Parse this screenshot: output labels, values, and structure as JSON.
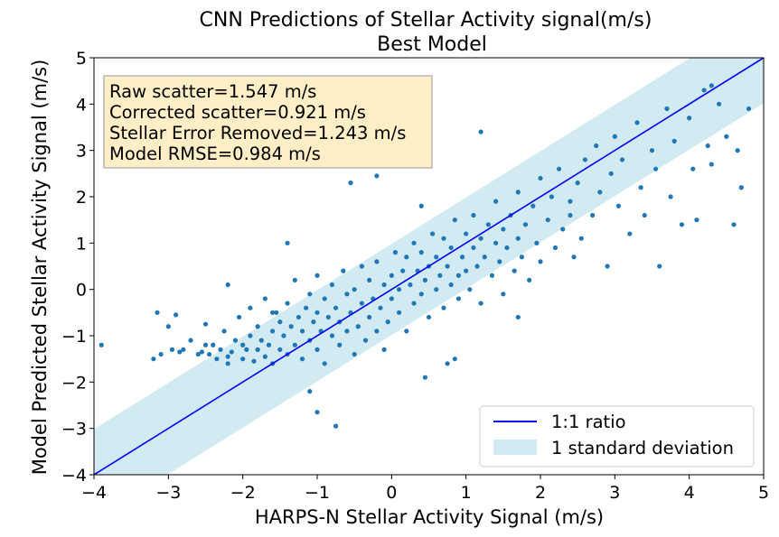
{
  "chart_data": {
    "type": "scatter",
    "title": "CNN Predictions of Stellar Activity signal(m/s)",
    "subtitle": "Best Model",
    "xlabel": "HARPS-N Stellar Activity Signal (m/s)",
    "ylabel": "Model Predicted Stellar Activity Signal (m/s)",
    "xlim": [
      -4,
      5
    ],
    "ylim": [
      -4,
      5
    ],
    "xticks": [
      -4,
      -3,
      -2,
      -1,
      0,
      1,
      2,
      3,
      4,
      5
    ],
    "yticks": [
      -4,
      -3,
      -2,
      -1,
      0,
      1,
      2,
      3,
      4,
      5
    ],
    "grid": false,
    "legend_position": "bottom-right",
    "annotation_lines": [
      "Raw scatter=1.547 m/s",
      "Corrected scatter=0.921 m/s",
      "Stellar Error Removed=1.243 m/s",
      "Model RMSE=0.984 m/s"
    ],
    "band": {
      "label": "1 standard deviation",
      "half_width": 0.984,
      "color": "#add8e6"
    },
    "reference_line": {
      "label": "1:1 ratio",
      "slope": 1,
      "intercept": 0,
      "color": "#0000ff"
    },
    "points_color": "#1f77b4",
    "points": [
      [
        -3.9,
        -1.2
      ],
      [
        -3.2,
        -1.5
      ],
      [
        -3.15,
        -0.5
      ],
      [
        -3.1,
        -1.4
      ],
      [
        -3.0,
        -0.8
      ],
      [
        -2.95,
        -1.3
      ],
      [
        -2.9,
        -0.55
      ],
      [
        -2.85,
        -1.35
      ],
      [
        -2.8,
        -1.3
      ],
      [
        -2.7,
        -1.1
      ],
      [
        -2.6,
        -1.4
      ],
      [
        -2.55,
        -1.35
      ],
      [
        -2.5,
        -1.2
      ],
      [
        -2.5,
        -0.75
      ],
      [
        -2.45,
        -1.4
      ],
      [
        -2.4,
        -1.2
      ],
      [
        -2.35,
        -1.5
      ],
      [
        -2.3,
        -1.3
      ],
      [
        -2.25,
        -0.9
      ],
      [
        -2.2,
        -1.45
      ],
      [
        -2.2,
        -1.6
      ],
      [
        -2.15,
        -1.35
      ],
      [
        -2.1,
        -1.1
      ],
      [
        -2.05,
        -0.6
      ],
      [
        -2.0,
        -1.2
      ],
      [
        -2.0,
        -1.5
      ],
      [
        -1.95,
        -1.3
      ],
      [
        -1.9,
        -1.0
      ],
      [
        -1.9,
        -0.4
      ],
      [
        -1.85,
        -1.55
      ],
      [
        -1.8,
        -1.3
      ],
      [
        -1.8,
        -0.8
      ],
      [
        -1.75,
        -1.1
      ],
      [
        -1.7,
        -1.45
      ],
      [
        -1.7,
        -0.2
      ],
      [
        -1.65,
        -1.2
      ],
      [
        -1.6,
        -0.9
      ],
      [
        -1.6,
        -1.6
      ],
      [
        -1.55,
        -0.5
      ],
      [
        -1.5,
        -1.3
      ],
      [
        -1.5,
        -0.7
      ],
      [
        -1.45,
        -1.0
      ],
      [
        -1.4,
        -1.4
      ],
      [
        -1.4,
        -0.3
      ],
      [
        -1.35,
        -0.8
      ],
      [
        -1.3,
        -1.2
      ],
      [
        -1.3,
        0.2
      ],
      [
        -1.25,
        -0.6
      ],
      [
        -1.2,
        -1.5
      ],
      [
        -1.2,
        -0.9
      ],
      [
        -1.15,
        -0.4
      ],
      [
        -1.1,
        -1.1
      ],
      [
        -1.1,
        -0.1
      ],
      [
        -1.05,
        -0.7
      ],
      [
        -1.0,
        -1.3
      ],
      [
        -1.0,
        -0.5
      ],
      [
        -1.0,
        0.3
      ],
      [
        -0.95,
        -0.9
      ],
      [
        -0.9,
        -0.2
      ],
      [
        -0.9,
        -1.6
      ],
      [
        -0.85,
        -0.6
      ],
      [
        -0.8,
        -1.0
      ],
      [
        -0.8,
        0.1
      ],
      [
        -0.75,
        -0.4
      ],
      [
        -0.7,
        -1.2
      ],
      [
        -0.7,
        -0.7
      ],
      [
        -0.65,
        0.4
      ],
      [
        -0.6,
        -0.1
      ],
      [
        -0.6,
        -0.9
      ],
      [
        -0.55,
        -0.5
      ],
      [
        -0.5,
        -1.4
      ],
      [
        -0.5,
        0.0
      ],
      [
        -0.45,
        -0.8
      ],
      [
        -0.4,
        -0.3
      ],
      [
        -0.4,
        0.5
      ],
      [
        -0.35,
        -1.1
      ],
      [
        -0.3,
        -0.6
      ],
      [
        -0.3,
        0.2
      ],
      [
        -0.25,
        -0.2
      ],
      [
        -0.2,
        -0.9
      ],
      [
        -0.2,
        0.6
      ],
      [
        -0.15,
        -0.4
      ],
      [
        -0.1,
        0.1
      ],
      [
        -0.1,
        -1.3
      ],
      [
        -0.05,
        -0.7
      ],
      [
        0.0,
        0.3
      ],
      [
        0.0,
        -0.2
      ],
      [
        0.05,
        0.8
      ],
      [
        0.1,
        -0.5
      ],
      [
        0.1,
        0.0
      ],
      [
        0.15,
        0.4
      ],
      [
        0.2,
        -0.9
      ],
      [
        0.2,
        0.7
      ],
      [
        0.25,
        0.1
      ],
      [
        0.3,
        -0.3
      ],
      [
        0.3,
        1.0
      ],
      [
        0.35,
        0.4
      ],
      [
        0.4,
        -0.1
      ],
      [
        0.4,
        0.8
      ],
      [
        0.45,
        0.2
      ],
      [
        0.5,
        -0.6
      ],
      [
        0.5,
        0.5
      ],
      [
        0.55,
        1.2
      ],
      [
        0.6,
        0.0
      ],
      [
        0.6,
        0.7
      ],
      [
        0.65,
        0.3
      ],
      [
        0.7,
        -0.4
      ],
      [
        0.7,
        1.1
      ],
      [
        0.75,
        0.5
      ],
      [
        0.8,
        0.1
      ],
      [
        0.8,
        0.9
      ],
      [
        0.85,
        1.5
      ],
      [
        0.9,
        0.3
      ],
      [
        0.9,
        -0.2
      ],
      [
        0.95,
        0.7
      ],
      [
        1.0,
        1.2
      ],
      [
        1.0,
        0.4
      ],
      [
        1.05,
        0.0
      ],
      [
        1.1,
        0.9
      ],
      [
        1.1,
        1.6
      ],
      [
        1.15,
        0.5
      ],
      [
        1.2,
        1.1
      ],
      [
        1.2,
        -0.3
      ],
      [
        1.25,
        0.7
      ],
      [
        1.3,
        1.4
      ],
      [
        1.35,
        0.3
      ],
      [
        1.4,
        1.0
      ],
      [
        1.4,
        1.9
      ],
      [
        1.45,
        0.6
      ],
      [
        1.5,
        1.3
      ],
      [
        1.5,
        -0.1
      ],
      [
        1.55,
        0.9
      ],
      [
        1.6,
        1.6
      ],
      [
        1.65,
        0.4
      ],
      [
        1.7,
        1.1
      ],
      [
        1.7,
        2.1
      ],
      [
        1.75,
        0.7
      ],
      [
        1.8,
        1.4
      ],
      [
        1.85,
        0.2
      ],
      [
        1.9,
        1.8
      ],
      [
        1.95,
        1.0
      ],
      [
        2.0,
        2.4
      ],
      [
        2.0,
        0.6
      ],
      [
        2.1,
        1.5
      ],
      [
        2.15,
        2.0
      ],
      [
        2.2,
        0.9
      ],
      [
        2.25,
        2.6
      ],
      [
        2.3,
        1.3
      ],
      [
        2.4,
        1.9
      ],
      [
        2.45,
        0.7
      ],
      [
        2.5,
        2.3
      ],
      [
        2.55,
        1.1
      ],
      [
        2.6,
        2.8
      ],
      [
        2.7,
        1.6
      ],
      [
        2.75,
        3.1
      ],
      [
        2.8,
        2.1
      ],
      [
        2.9,
        0.5
      ],
      [
        2.95,
        2.5
      ],
      [
        3.0,
        3.3
      ],
      [
        3.05,
        1.8
      ],
      [
        3.1,
        2.8
      ],
      [
        3.2,
        1.2
      ],
      [
        3.3,
        3.6
      ],
      [
        3.35,
        2.2
      ],
      [
        3.4,
        1.6
      ],
      [
        3.5,
        3.0
      ],
      [
        3.55,
        2.6
      ],
      [
        3.6,
        0.5
      ],
      [
        3.7,
        3.9
      ],
      [
        3.75,
        2.0
      ],
      [
        3.8,
        3.2
      ],
      [
        3.9,
        1.4
      ],
      [
        4.0,
        3.7
      ],
      [
        4.05,
        2.6
      ],
      [
        4.1,
        1.5
      ],
      [
        4.2,
        4.3
      ],
      [
        4.25,
        3.1
      ],
      [
        4.3,
        2.7
      ],
      [
        4.4,
        4.0
      ],
      [
        4.5,
        3.3
      ],
      [
        4.6,
        1.4
      ],
      [
        4.65,
        3.0
      ],
      [
        4.7,
        2.2
      ],
      [
        4.8,
        3.9
      ],
      [
        -0.55,
        2.3
      ],
      [
        -1.4,
        1.0
      ],
      [
        0.45,
        -1.9
      ],
      [
        -1.0,
        -2.65
      ],
      [
        -0.75,
        -2.95
      ],
      [
        -1.1,
        -2.2
      ],
      [
        0.75,
        -1.6
      ],
      [
        -2.2,
        0.1
      ],
      [
        0.4,
        1.8
      ],
      [
        1.2,
        3.4
      ],
      [
        -0.2,
        2.45
      ],
      [
        1.7,
        -0.6
      ],
      [
        2.4,
        1.6
      ],
      [
        4.3,
        4.4
      ],
      [
        -1.6,
        -0.5
      ],
      [
        0.85,
        -1.5
      ]
    ]
  }
}
